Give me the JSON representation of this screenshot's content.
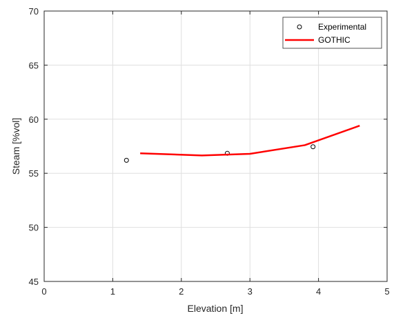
{
  "chart_data": {
    "type": "line",
    "xlabel": "Elevation [m]",
    "ylabel": "Steam [%vol]",
    "xlim": [
      0,
      5
    ],
    "ylim": [
      45,
      70
    ],
    "xticks": [
      "0",
      "1",
      "2",
      "3",
      "4",
      "5"
    ],
    "yticks": [
      "45",
      "50",
      "55",
      "60",
      "65",
      "70"
    ],
    "grid": true,
    "legend_position": "top-right",
    "series": [
      {
        "name": "Experimental",
        "style": "markers",
        "marker": "circle",
        "color": "#000000",
        "x": [
          1.2,
          2.67,
          3.92
        ],
        "y": [
          56.2,
          56.85,
          57.45
        ]
      },
      {
        "name": "GOTHIC",
        "style": "line",
        "color": "#ff0000",
        "x": [
          1.4,
          2.3,
          3.0,
          3.8,
          4.6
        ],
        "y": [
          56.85,
          56.65,
          56.8,
          57.6,
          59.4
        ]
      }
    ]
  }
}
